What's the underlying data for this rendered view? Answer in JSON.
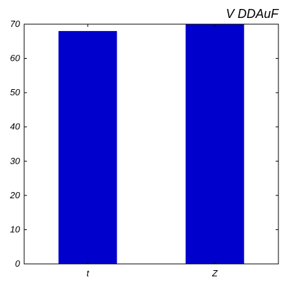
{
  "chart_data": {
    "type": "bar",
    "title": "V DDAuF",
    "categories": [
      "t",
      "Z"
    ],
    "values": [
      68,
      70
    ],
    "ylim": [
      0,
      70
    ],
    "yticks": [
      0,
      10,
      20,
      30,
      40,
      50,
      60,
      70
    ],
    "grid": false,
    "colors": {
      "bar": "#0000cc",
      "axis": "#000000",
      "background": "#ffffff"
    }
  }
}
